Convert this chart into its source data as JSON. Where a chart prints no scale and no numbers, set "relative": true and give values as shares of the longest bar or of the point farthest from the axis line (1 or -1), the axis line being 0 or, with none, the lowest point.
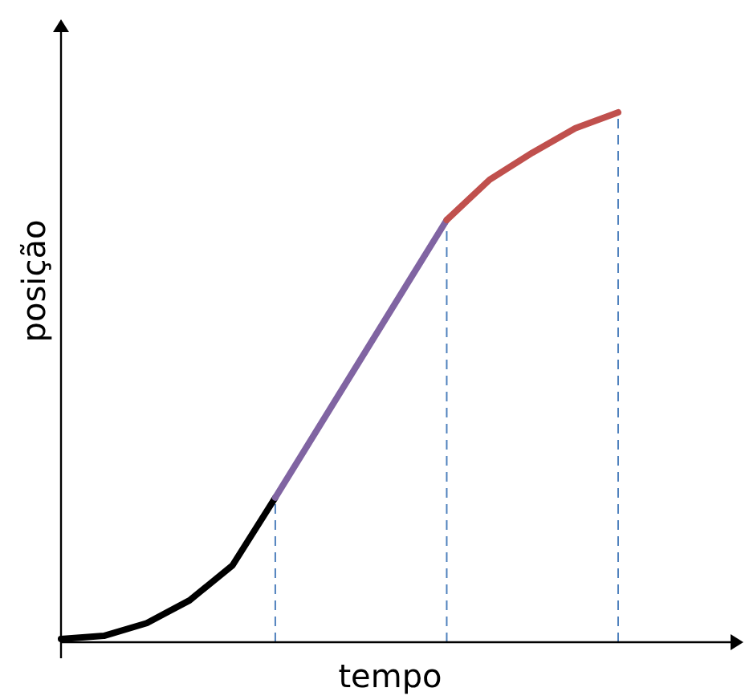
{
  "chart_data": {
    "type": "line",
    "xlabel": "tempo",
    "ylabel": "posição",
    "relative": true,
    "marker": "none",
    "line_style": "solid",
    "categories": [
      null,
      null,
      null,
      null,
      null,
      null,
      null,
      null,
      null,
      null,
      null,
      null,
      null,
      null
    ],
    "series": [
      {
        "color": "#000000",
        "values": [
          0.006,
          0.012,
          0.036,
          0.079,
          0.145,
          0.273,
          null,
          null,
          null,
          null,
          null,
          null,
          null,
          null
        ]
      },
      {
        "color": "#8064a2",
        "values": [
          null,
          null,
          null,
          null,
          null,
          0.273,
          0.404,
          0.535,
          0.666,
          0.797,
          null,
          null,
          null,
          null
        ]
      },
      {
        "color": "#c0504d",
        "values": [
          null,
          null,
          null,
          null,
          null,
          null,
          null,
          null,
          null,
          0.797,
          0.873,
          0.924,
          0.97,
          1
        ]
      }
    ]
  }
}
